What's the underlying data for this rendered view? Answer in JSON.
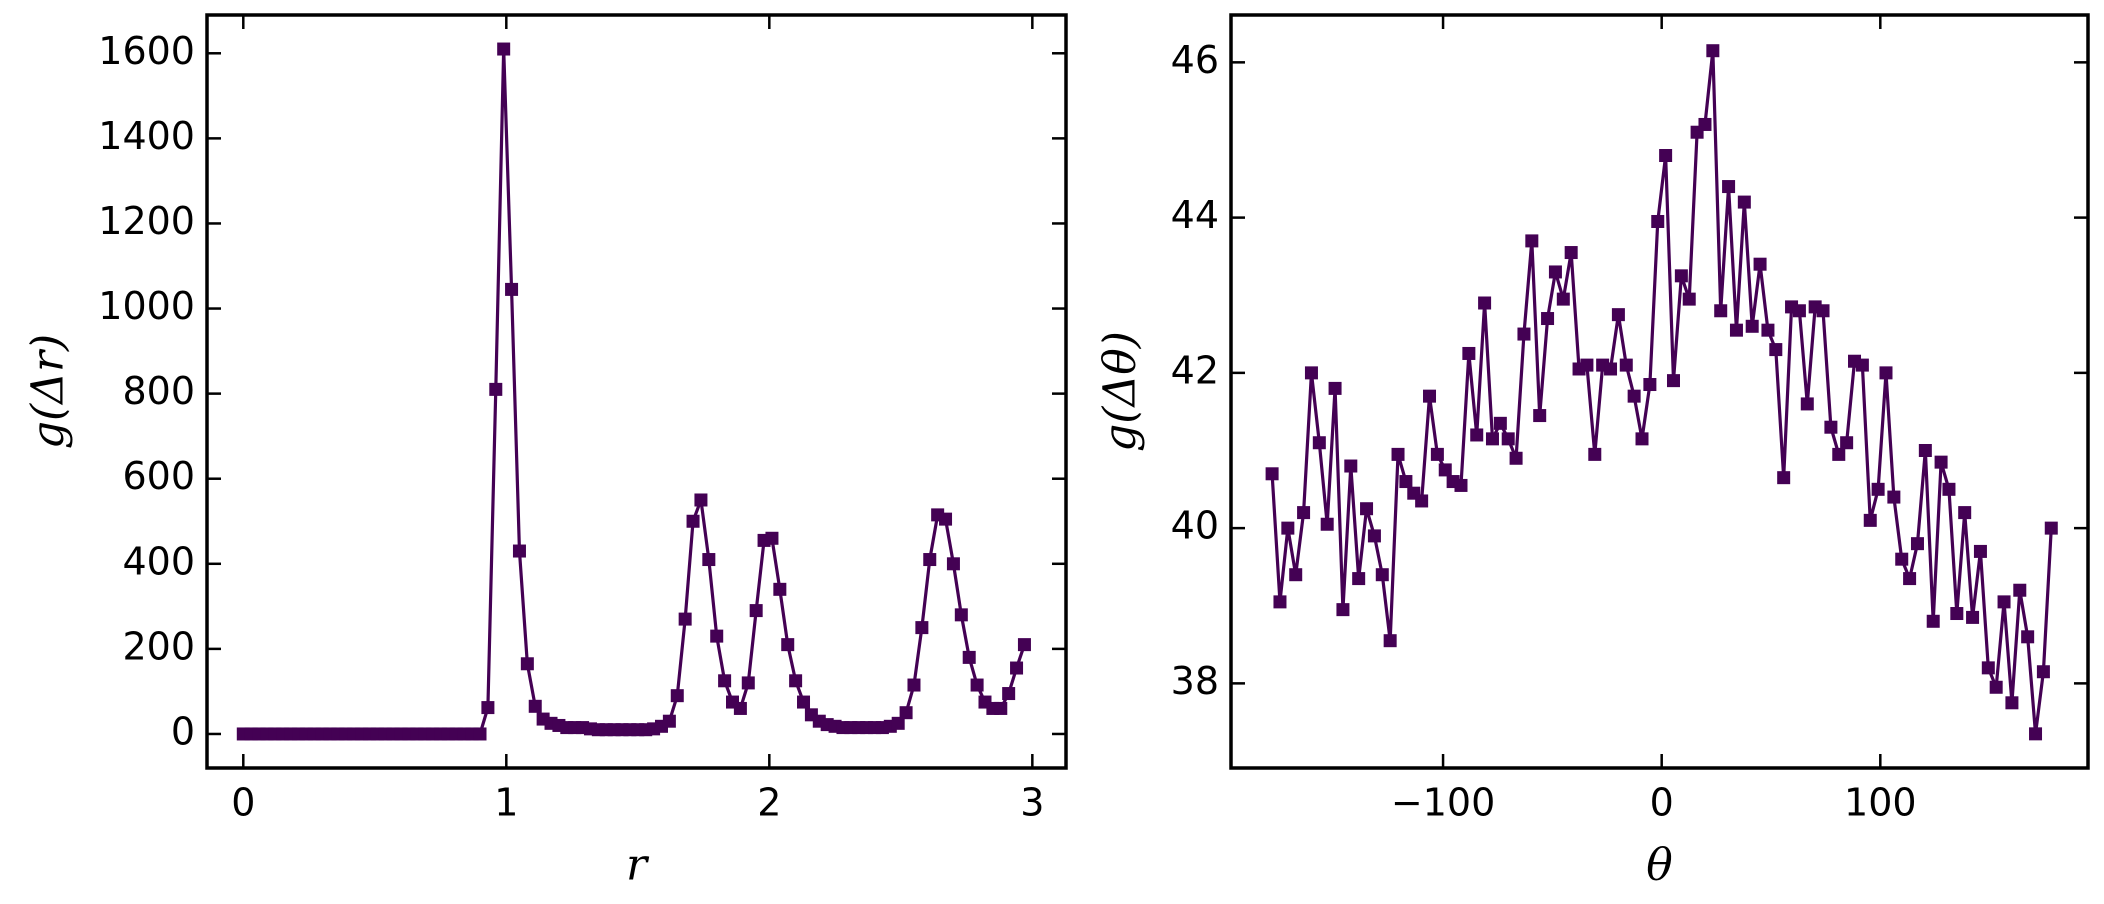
{
  "chart_data": [
    {
      "type": "line",
      "xlabel": "r",
      "ylabel": "g(Δr)",
      "color": "#440154",
      "marker": "square",
      "x": [
        0,
        0.03,
        0.06,
        0.09,
        0.12,
        0.15,
        0.18,
        0.21,
        0.24,
        0.27,
        0.3,
        0.33,
        0.36,
        0.39,
        0.42,
        0.45,
        0.48,
        0.51,
        0.54,
        0.57,
        0.6,
        0.63,
        0.66,
        0.69,
        0.72,
        0.75,
        0.78,
        0.81,
        0.84,
        0.87,
        0.9,
        0.93,
        0.96,
        0.99,
        1.02,
        1.05,
        1.08,
        1.11,
        1.14,
        1.17,
        1.2,
        1.23,
        1.26,
        1.29,
        1.32,
        1.35,
        1.38,
        1.41,
        1.44,
        1.47,
        1.5,
        1.53,
        1.56,
        1.59,
        1.62,
        1.65,
        1.68,
        1.71,
        1.74,
        1.77,
        1.8,
        1.83,
        1.86,
        1.89,
        1.92,
        1.95,
        1.98,
        2.01,
        2.04,
        2.07,
        2.1,
        2.13,
        2.16,
        2.19,
        2.22,
        2.25,
        2.28,
        2.31,
        2.34,
        2.37,
        2.4,
        2.43,
        2.46,
        2.49,
        2.52,
        2.55,
        2.58,
        2.61,
        2.64,
        2.67,
        2.7,
        2.73,
        2.76,
        2.79,
        2.82,
        2.85,
        2.88,
        2.91,
        2.94,
        2.97
      ],
      "values": [
        0,
        0,
        0,
        0,
        0,
        0,
        0,
        0,
        0,
        0,
        0,
        0,
        0,
        0,
        0,
        0,
        0,
        0,
        0,
        0,
        0,
        0,
        0,
        0,
        0,
        0,
        0,
        0,
        0,
        0,
        0,
        62,
        810,
        1610,
        1045,
        430,
        165,
        65,
        35,
        25,
        20,
        15,
        15,
        15,
        12,
        10,
        10,
        10,
        10,
        10,
        10,
        10,
        12,
        18,
        30,
        90,
        270,
        500,
        550,
        410,
        230,
        125,
        75,
        60,
        120,
        290,
        455,
        460,
        340,
        210,
        125,
        75,
        45,
        30,
        22,
        18,
        15,
        15,
        15,
        15,
        15,
        15,
        18,
        25,
        50,
        115,
        250,
        410,
        515,
        505,
        400,
        280,
        180,
        115,
        75,
        60,
        60,
        95,
        155,
        210
      ],
      "xlim": [
        -0.138,
        3.128
      ],
      "xticks": [
        0,
        1,
        2,
        3
      ],
      "ylim": [
        -80,
        1690
      ],
      "yticks": [
        0,
        200,
        400,
        600,
        800,
        1000,
        1200,
        1400,
        1600
      ]
    },
    {
      "type": "line",
      "xlabel": "θ",
      "ylabel": "g(Δθ)",
      "color": "#440154",
      "marker": "square",
      "x": [
        -178.2,
        -174.6,
        -171,
        -167.4,
        -163.8,
        -160.2,
        -156.6,
        -153,
        -149.4,
        -145.8,
        -142.2,
        -138.6,
        -135,
        -131.4,
        -127.8,
        -124.2,
        -120.6,
        -117,
        -113.4,
        -109.8,
        -106.2,
        -102.6,
        -99,
        -95.4,
        -91.8,
        -88.2,
        -84.6,
        -81,
        -77.4,
        -73.8,
        -70.2,
        -66.6,
        -63,
        -59.4,
        -55.8,
        -52.2,
        -48.6,
        -45,
        -41.4,
        -37.8,
        -34.2,
        -30.6,
        -27,
        -23.4,
        -19.8,
        -16.2,
        -12.6,
        -9,
        -5.4,
        -1.8,
        1.8,
        5.4,
        9,
        12.6,
        16.2,
        19.8,
        23.4,
        27,
        30.6,
        34.2,
        37.8,
        41.4,
        45,
        48.6,
        52.2,
        55.8,
        59.4,
        63,
        66.6,
        70.2,
        73.8,
        77.4,
        81,
        84.6,
        88.2,
        91.8,
        95.4,
        99,
        102.6,
        106.2,
        109.8,
        113.4,
        117,
        120.6,
        124.2,
        127.8,
        131.4,
        135,
        138.6,
        142.2,
        145.8,
        149.4,
        153,
        156.6,
        160.2,
        163.8,
        167.4,
        171,
        174.6,
        178.2
      ],
      "values": [
        40.7,
        39.05,
        40.0,
        39.4,
        40.2,
        42.0,
        41.1,
        40.05,
        41.8,
        38.95,
        40.8,
        39.35,
        40.25,
        39.9,
        39.4,
        38.55,
        40.95,
        40.6,
        40.45,
        40.35,
        41.7,
        40.95,
        40.75,
        40.6,
        40.55,
        42.25,
        41.2,
        42.9,
        41.15,
        41.35,
        41.15,
        40.9,
        42.5,
        43.7,
        41.45,
        42.7,
        43.3,
        42.95,
        43.55,
        42.05,
        42.1,
        40.95,
        42.1,
        42.05,
        42.75,
        42.1,
        41.7,
        41.15,
        41.85,
        43.95,
        44.8,
        41.9,
        43.25,
        42.95,
        45.1,
        45.2,
        46.15,
        42.8,
        44.4,
        42.55,
        44.2,
        42.6,
        43.4,
        42.55,
        42.3,
        40.65,
        42.85,
        42.8,
        41.6,
        42.85,
        42.8,
        41.3,
        40.95,
        41.1,
        42.15,
        42.1,
        40.1,
        40.5,
        42.0,
        40.4,
        39.6,
        39.35,
        39.8,
        41.0,
        38.8,
        40.85,
        40.5,
        38.9,
        40.2,
        38.85,
        39.7,
        38.2,
        37.95,
        39.05,
        37.75,
        39.2,
        38.6,
        37.35,
        38.15,
        40.0
      ],
      "xlim": [
        -197,
        195
      ],
      "xticks": [
        {
          "value": -100,
          "label": "−100"
        },
        0,
        100
      ],
      "ylim": [
        36.91,
        46.61
      ],
      "yticks": [
        38,
        40,
        42,
        44,
        46
      ]
    }
  ]
}
